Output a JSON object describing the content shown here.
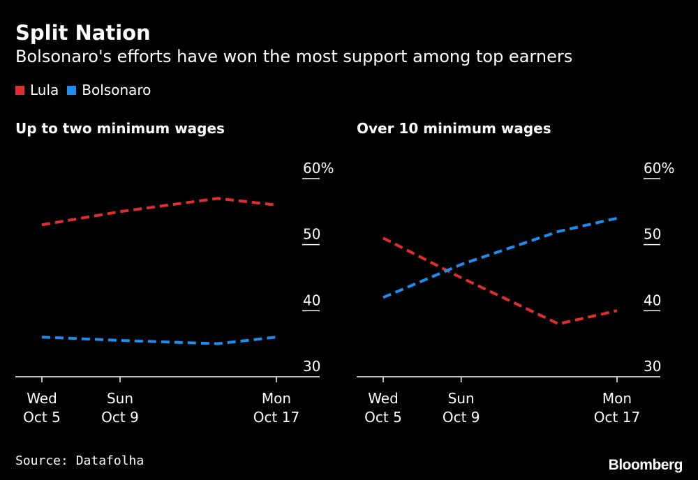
{
  "header": {
    "title": "Split Nation",
    "subtitle": "Bolsonaro's efforts have won the most support among top earners"
  },
  "legend": [
    {
      "label": "Lula",
      "color": "#e12d2d"
    },
    {
      "label": "Bolsonaro",
      "color": "#1f8ded"
    }
  ],
  "footer": {
    "source": "Source: Datafolha",
    "brand": "Bloomberg"
  },
  "chart_data": [
    {
      "type": "line",
      "title": "Up to two minimum wages",
      "x": [
        5,
        9,
        14,
        17
      ],
      "x_ticks": [
        {
          "value": 5,
          "line1": "Wed",
          "line2": "Oct 5"
        },
        {
          "value": 9,
          "line1": "Sun",
          "line2": "Oct 9"
        },
        {
          "value": 17,
          "line1": "Mon",
          "line2": "Oct 17"
        }
      ],
      "xlim": [
        4,
        18
      ],
      "ylim": [
        30,
        60
      ],
      "y_ticks": [
        {
          "value": 60,
          "label": "60%"
        },
        {
          "value": 50,
          "label": "50"
        },
        {
          "value": 40,
          "label": "40"
        },
        {
          "value": 30,
          "label": "30"
        }
      ],
      "series": [
        {
          "name": "Lula",
          "color": "#e12d2d",
          "values": [
            53,
            55,
            57,
            56
          ]
        },
        {
          "name": "Bolsonaro",
          "color": "#1f8ded",
          "values": [
            36,
            35.5,
            35,
            36
          ]
        }
      ]
    },
    {
      "type": "line",
      "title": "Over 10 minimum wages",
      "x": [
        5,
        9,
        14,
        17
      ],
      "x_ticks": [
        {
          "value": 5,
          "line1": "Wed",
          "line2": "Oct 5"
        },
        {
          "value": 9,
          "line1": "Sun",
          "line2": "Oct 9"
        },
        {
          "value": 17,
          "line1": "Mon",
          "line2": "Oct 17"
        }
      ],
      "xlim": [
        4,
        18
      ],
      "ylim": [
        30,
        60
      ],
      "y_ticks": [
        {
          "value": 60,
          "label": "60%"
        },
        {
          "value": 50,
          "label": "50"
        },
        {
          "value": 40,
          "label": "40"
        },
        {
          "value": 30,
          "label": "30"
        }
      ],
      "series": [
        {
          "name": "Lula",
          "color": "#e12d2d",
          "values": [
            51,
            45,
            38,
            40
          ]
        },
        {
          "name": "Bolsonaro",
          "color": "#1f8ded",
          "values": [
            42,
            47,
            52,
            54
          ]
        }
      ]
    }
  ]
}
